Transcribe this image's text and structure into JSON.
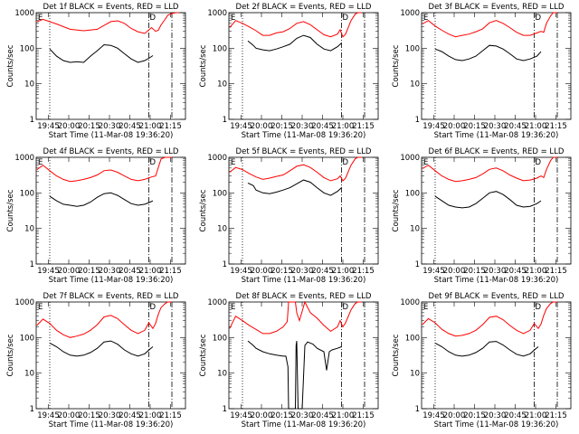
{
  "chart_data": [
    {
      "type": "line",
      "title": "Det 1f BLACK = Events, RED = LLD",
      "xlabel": "Start Time (11-Mar-08 19:36:20)",
      "ylabel": "Counts/sec",
      "x_ticklabels": [
        "19:45",
        "20:00",
        "20:15",
        "20:30",
        "20:45",
        "21:00",
        "21:15"
      ],
      "y_ticklabels": [
        "1",
        "10",
        "100",
        "1000"
      ],
      "y_scale": "log",
      "ylim": [
        1,
        1000
      ],
      "annotations": [
        "E",
        "D"
      ],
      "series": [
        {
          "color": "#ff0000",
          "x": [
            0.5,
            5,
            15,
            25,
            35,
            45,
            55,
            60,
            65,
            70,
            75,
            80,
            85,
            88,
            90,
            92,
            95,
            97,
            100,
            103,
            105
          ],
          "y": [
            550,
            650,
            480,
            340,
            310,
            340,
            560,
            590,
            500,
            360,
            290,
            260,
            380,
            300,
            320,
            450,
            650,
            850,
            950,
            1000,
            1000
          ]
        },
        {
          "color": "#000000",
          "x": [
            10,
            15,
            20,
            25,
            30,
            35,
            40,
            45,
            50,
            55,
            60,
            65,
            70,
            75,
            80,
            84,
            86
          ],
          "y": [
            95,
            60,
            45,
            40,
            42,
            40,
            60,
            85,
            125,
            120,
            100,
            70,
            50,
            40,
            45,
            55,
            62
          ]
        }
      ]
    },
    {
      "type": "line",
      "title": "Det 2f BLACK = Events, RED = LLD",
      "xlabel": "Start Time (11-Mar-08 19:36:20)",
      "ylabel": "Counts/sec",
      "x_ticklabels": [
        "19:45",
        "20:00",
        "20:15",
        "20:30",
        "20:45",
        "21:00",
        "21:15"
      ],
      "y_ticklabels": [
        "1",
        "10",
        "100",
        "1000"
      ],
      "y_scale": "log",
      "ylim": [
        1,
        1000
      ],
      "annotations": [
        "E",
        "D"
      ],
      "series": [
        {
          "color": "#ff0000",
          "x": [
            0.5,
            5,
            10,
            15,
            20,
            25,
            30,
            35,
            40,
            45,
            50,
            55,
            60,
            65,
            70,
            75,
            80,
            82,
            84,
            86,
            90,
            93,
            95,
            98
          ],
          "y": [
            380,
            600,
            500,
            400,
            310,
            230,
            230,
            270,
            290,
            360,
            500,
            560,
            460,
            330,
            240,
            210,
            250,
            330,
            210,
            250,
            600,
            900,
            1000,
            1000
          ]
        },
        {
          "color": "#000000",
          "x": [
            14,
            18,
            20,
            25,
            30,
            35,
            40,
            45,
            50,
            55,
            60,
            65,
            70,
            75,
            80,
            83
          ],
          "y": [
            160,
            120,
            100,
            90,
            85,
            95,
            110,
            130,
            190,
            230,
            200,
            130,
            95,
            85,
            110,
            140
          ]
        }
      ]
    },
    {
      "type": "line",
      "title": "Det 3f BLACK = Events, RED = LLD",
      "xlabel": "Start Time (11-Mar-08 19:36:20)",
      "ylabel": "Counts/sec",
      "x_ticklabels": [
        "19:45",
        "20:00",
        "20:15",
        "20:30",
        "20:45",
        "21:00",
        "21:15"
      ],
      "y_ticklabels": [
        "1",
        "10",
        "100",
        "1000"
      ],
      "y_scale": "log",
      "ylim": [
        1,
        1000
      ],
      "annotations": [
        "E",
        "D"
      ],
      "series": [
        {
          "color": "#ff0000",
          "x": [
            0.5,
            5,
            10,
            15,
            20,
            25,
            30,
            35,
            40,
            45,
            50,
            55,
            60,
            65,
            70,
            75,
            80,
            85,
            88,
            90,
            92,
            95,
            97,
            100
          ],
          "y": [
            480,
            600,
            420,
            320,
            250,
            210,
            230,
            250,
            290,
            350,
            520,
            600,
            500,
            380,
            280,
            230,
            230,
            270,
            300,
            280,
            500,
            800,
            1000,
            1000
          ]
        },
        {
          "color": "#000000",
          "x": [
            10,
            15,
            20,
            25,
            30,
            35,
            40,
            45,
            50,
            55,
            60,
            65,
            70,
            75,
            80,
            85,
            88
          ],
          "y": [
            95,
            80,
            60,
            48,
            45,
            50,
            60,
            85,
            120,
            115,
            95,
            70,
            50,
            45,
            50,
            60,
            80
          ]
        }
      ]
    },
    {
      "type": "line",
      "title": "Det 4f BLACK = Events, RED = LLD",
      "xlabel": "Start Time (11-Mar-08 19:36:20)",
      "ylabel": "Counts/sec",
      "x_ticklabels": [
        "19:45",
        "20:00",
        "20:15",
        "20:30",
        "20:45",
        "21:00",
        "21:15"
      ],
      "y_ticklabels": [
        "1",
        "10",
        "100",
        "1000"
      ],
      "y_scale": "log",
      "ylim": [
        1,
        1000
      ],
      "annotations": [
        "E",
        "D"
      ],
      "series": [
        {
          "color": "#ff0000",
          "x": [
            0.5,
            5,
            10,
            15,
            20,
            25,
            30,
            35,
            40,
            45,
            50,
            55,
            60,
            65,
            70,
            75,
            80,
            85,
            88,
            92,
            95,
            100
          ],
          "y": [
            450,
            600,
            420,
            300,
            240,
            210,
            220,
            240,
            270,
            320,
            420,
            440,
            380,
            300,
            240,
            220,
            240,
            280,
            300,
            900,
            1000,
            1000
          ]
        },
        {
          "color": "#000000",
          "x": [
            10,
            15,
            20,
            25,
            30,
            35,
            40,
            45,
            50,
            55,
            60,
            65,
            70,
            75,
            80,
            84,
            86
          ],
          "y": [
            80,
            60,
            48,
            45,
            42,
            45,
            55,
            75,
            95,
            100,
            85,
            65,
            50,
            45,
            48,
            55,
            60
          ]
        }
      ]
    },
    {
      "type": "line",
      "title": "Det 5f BLACK = Events, RED = LLD",
      "xlabel": "Start Time (11-Mar-08 19:36:20)",
      "ylabel": "Counts/sec",
      "x_ticklabels": [
        "19:45",
        "20:00",
        "20:15",
        "20:30",
        "20:45",
        "21:00",
        "21:15"
      ],
      "y_ticklabels": [
        "1",
        "10",
        "100",
        "1000"
      ],
      "y_scale": "log",
      "ylim": [
        1,
        1000
      ],
      "annotations": [
        "E",
        "D"
      ],
      "series": [
        {
          "color": "#ff0000",
          "x": [
            0.5,
            5,
            10,
            15,
            20,
            25,
            30,
            35,
            40,
            45,
            50,
            55,
            60,
            65,
            70,
            75,
            80,
            82,
            84,
            86,
            90,
            93,
            95,
            98
          ],
          "y": [
            380,
            520,
            450,
            350,
            280,
            240,
            260,
            290,
            320,
            420,
            560,
            620,
            520,
            380,
            270,
            220,
            250,
            300,
            220,
            260,
            600,
            900,
            1000,
            1000
          ]
        },
        {
          "color": "#000000",
          "x": [
            14,
            18,
            20,
            25,
            30,
            35,
            40,
            45,
            50,
            55,
            60,
            65,
            70,
            75,
            80,
            83
          ],
          "y": [
            190,
            160,
            120,
            100,
            95,
            105,
            120,
            140,
            180,
            230,
            200,
            140,
            100,
            85,
            110,
            140
          ]
        }
      ]
    },
    {
      "type": "line",
      "title": "Det 6f BLACK = Events, RED = LLD",
      "xlabel": "Start Time (11-Mar-08 19:36:20)",
      "ylabel": "Counts/sec",
      "x_ticklabels": [
        "19:45",
        "20:00",
        "20:15",
        "20:30",
        "20:45",
        "21:00",
        "21:15"
      ],
      "y_ticklabels": [
        "1",
        "10",
        "100",
        "1000"
      ],
      "y_scale": "log",
      "ylim": [
        1,
        1000
      ],
      "annotations": [
        "E",
        "D"
      ],
      "series": [
        {
          "color": "#ff0000",
          "x": [
            0.5,
            5,
            10,
            15,
            20,
            25,
            30,
            35,
            40,
            45,
            50,
            55,
            60,
            65,
            70,
            75,
            80,
            85,
            88,
            90,
            92,
            95,
            97,
            100
          ],
          "y": [
            480,
            600,
            420,
            300,
            240,
            210,
            220,
            240,
            270,
            340,
            460,
            500,
            420,
            320,
            260,
            220,
            230,
            260,
            300,
            270,
            450,
            800,
            1000,
            1000
          ]
        },
        {
          "color": "#000000",
          "x": [
            10,
            15,
            20,
            25,
            30,
            35,
            40,
            45,
            50,
            55,
            60,
            65,
            70,
            75,
            80,
            85,
            88
          ],
          "y": [
            80,
            60,
            45,
            40,
            38,
            40,
            50,
            70,
            100,
            110,
            90,
            65,
            45,
            40,
            42,
            50,
            60
          ]
        }
      ]
    },
    {
      "type": "line",
      "title": "Det 7f BLACK = Events, RED = LLD",
      "xlabel": "Start Time (11-Mar-08 19:36:20)",
      "ylabel": "Counts/sec",
      "x_ticklabels": [
        "19:45",
        "20:00",
        "20:15",
        "20:30",
        "20:45",
        "21:00",
        "21:15"
      ],
      "y_ticklabels": [
        "1",
        "10",
        "100",
        "1000"
      ],
      "y_scale": "log",
      "ylim": [
        1,
        1000
      ],
      "annotations": [
        "E",
        "D"
      ],
      "series": [
        {
          "color": "#ff0000",
          "x": [
            0.5,
            5,
            10,
            15,
            20,
            25,
            30,
            35,
            40,
            45,
            50,
            55,
            60,
            65,
            70,
            75,
            80,
            83,
            86,
            88,
            90,
            92,
            95,
            97,
            100
          ],
          "y": [
            220,
            330,
            250,
            160,
            120,
            100,
            110,
            125,
            160,
            230,
            380,
            420,
            340,
            230,
            160,
            130,
            160,
            260,
            180,
            250,
            450,
            700,
            900,
            1000,
            1000
          ]
        },
        {
          "color": "#000000",
          "x": [
            10,
            15,
            20,
            25,
            30,
            35,
            40,
            45,
            50,
            55,
            60,
            65,
            70,
            75,
            80,
            84,
            86
          ],
          "y": [
            70,
            55,
            40,
            32,
            30,
            32,
            38,
            50,
            75,
            80,
            65,
            45,
            35,
            30,
            35,
            48,
            55
          ]
        }
      ]
    },
    {
      "type": "line",
      "title": "Det 8f BLACK = Events, RED = LLD",
      "xlabel": "Start Time (11-Mar-08 19:36:20)",
      "ylabel": "Counts/sec",
      "x_ticklabels": [
        "19:45",
        "20:00",
        "20:15",
        "20:30",
        "20:45",
        "21:00",
        "21:15"
      ],
      "y_ticklabels": [
        "1",
        "10",
        "100",
        "1000"
      ],
      "y_scale": "log",
      "ylim": [
        1,
        1000
      ],
      "annotations": [
        "E",
        "D"
      ],
      "series": [
        {
          "color": "#ff0000",
          "x": [
            0.5,
            5,
            10,
            15,
            20,
            25,
            30,
            35,
            40,
            43,
            44,
            46,
            49,
            50,
            52,
            56,
            60,
            65,
            70,
            75,
            80,
            82,
            84,
            86,
            90,
            93,
            95,
            98
          ],
          "y": [
            180,
            400,
            300,
            220,
            170,
            130,
            130,
            150,
            200,
            280,
            1000,
            1000,
            1000,
            500,
            300,
            1000,
            500,
            350,
            220,
            150,
            200,
            300,
            200,
            260,
            600,
            900,
            1000,
            1000
          ]
        },
        {
          "color": "#000000",
          "x": [
            14,
            18,
            20,
            25,
            30,
            35,
            40,
            42,
            43.5,
            44,
            46,
            49,
            49.5,
            50,
            51,
            52,
            54,
            56,
            58,
            62,
            65,
            70,
            72,
            74,
            76,
            80,
            83
          ],
          "y": [
            80,
            60,
            50,
            40,
            35,
            32,
            30,
            30,
            15,
            1,
            1,
            1,
            60,
            80,
            1,
            1,
            1,
            60,
            75,
            65,
            50,
            40,
            12,
            40,
            45,
            50,
            55
          ]
        }
      ]
    },
    {
      "type": "line",
      "title": "Det 9f BLACK = Events, RED = LLD",
      "xlabel": "Start Time (11-Mar-08 19:36:20)",
      "ylabel": "Counts/sec",
      "x_ticklabels": [
        "19:45",
        "20:00",
        "20:15",
        "20:30",
        "20:45",
        "21:00",
        "21:15"
      ],
      "y_ticklabels": [
        "1",
        "10",
        "100",
        "1000"
      ],
      "y_scale": "log",
      "ylim": [
        1,
        1000
      ],
      "annotations": [
        "E",
        "D"
      ],
      "series": [
        {
          "color": "#ff0000",
          "x": [
            0.5,
            5,
            10,
            15,
            20,
            25,
            30,
            35,
            40,
            45,
            50,
            55,
            60,
            65,
            70,
            75,
            80,
            83,
            86,
            88,
            90,
            92,
            95,
            97,
            100
          ],
          "y": [
            230,
            340,
            260,
            170,
            130,
            110,
            115,
            130,
            160,
            230,
            370,
            400,
            320,
            220,
            160,
            130,
            160,
            250,
            180,
            240,
            420,
            650,
            900,
            1000,
            1000
          ]
        },
        {
          "color": "#000000",
          "x": [
            10,
            15,
            20,
            25,
            30,
            35,
            40,
            45,
            50,
            55,
            60,
            65,
            70,
            75,
            80,
            84,
            86
          ],
          "y": [
            70,
            55,
            40,
            32,
            30,
            32,
            38,
            50,
            75,
            78,
            62,
            45,
            34,
            30,
            35,
            48,
            55
          ]
        }
      ]
    }
  ]
}
